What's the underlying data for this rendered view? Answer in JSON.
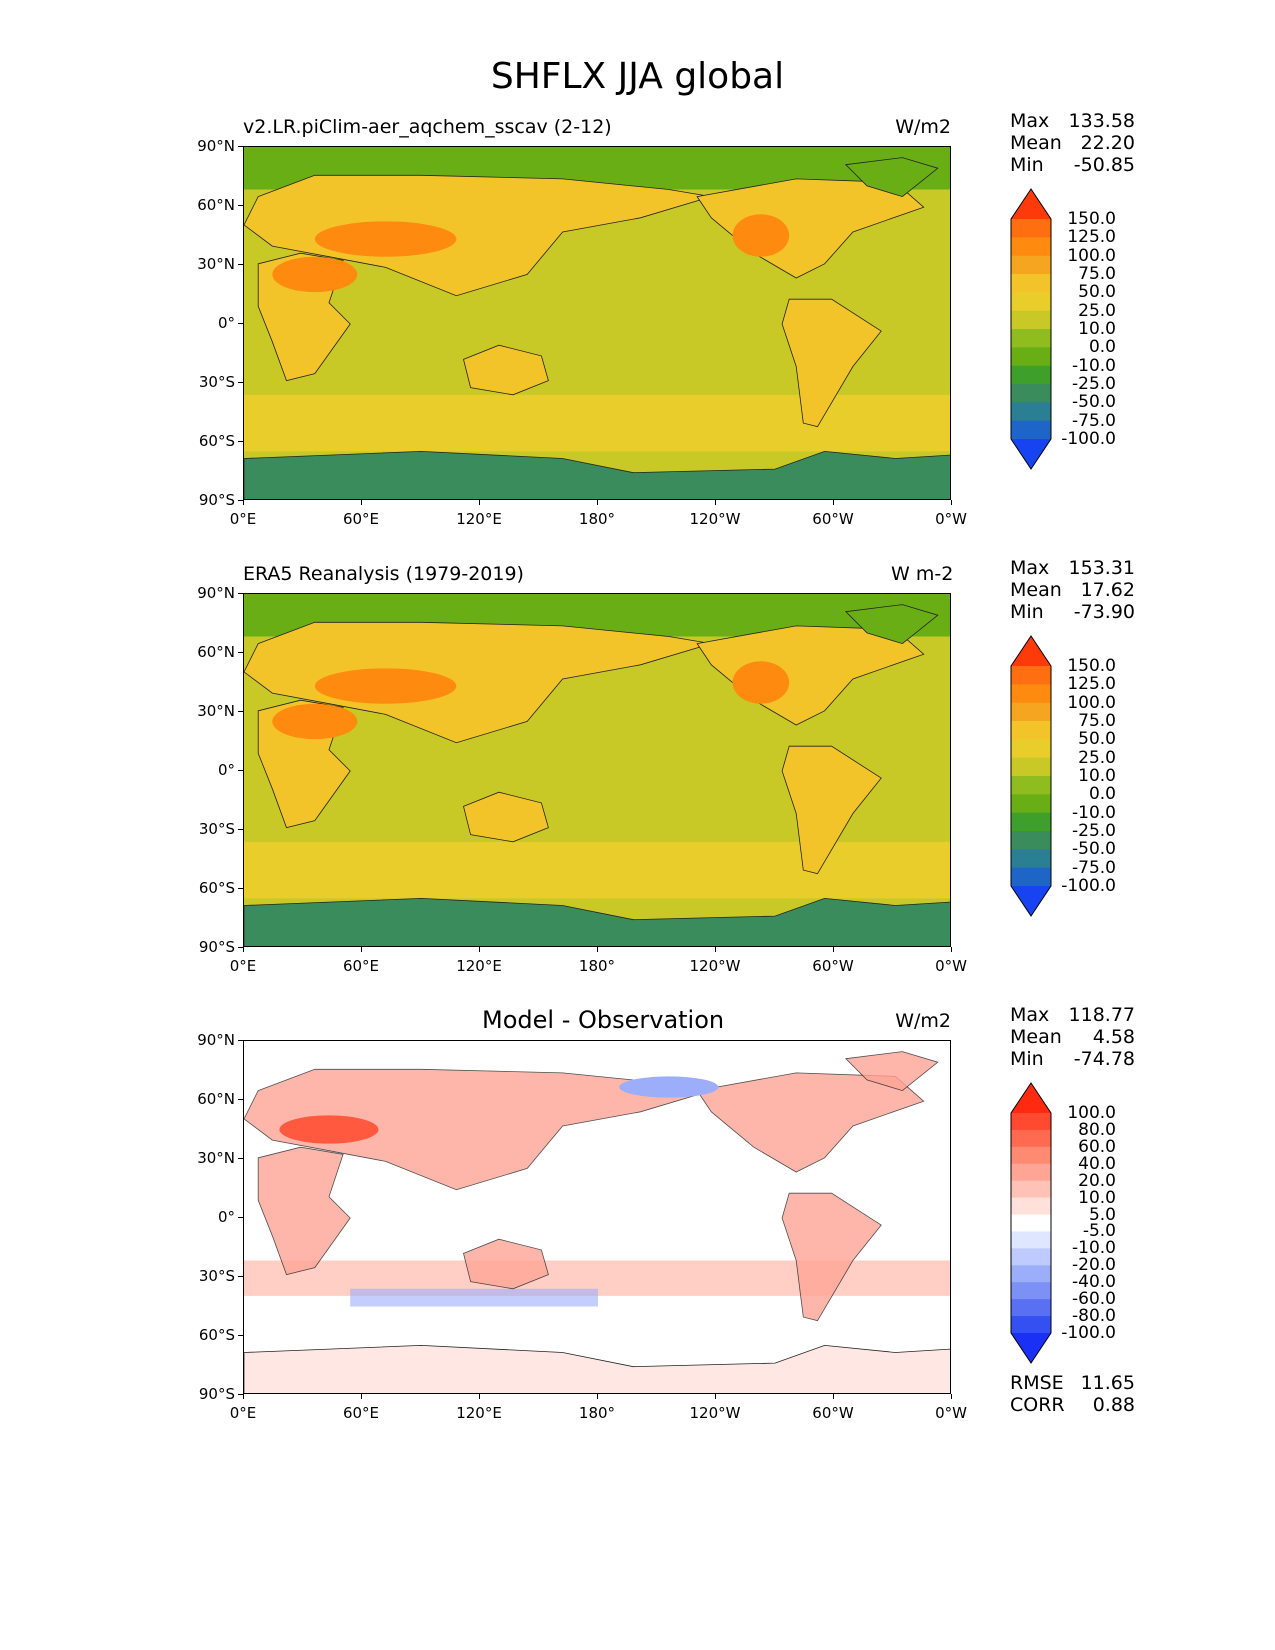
{
  "title": "SHFLX JJA global",
  "lat_labels": [
    "90°N",
    "60°N",
    "30°N",
    "0°",
    "30°S",
    "60°S",
    "90°S"
  ],
  "lon_labels": [
    "0°E",
    "60°E",
    "120°E",
    "180°",
    "120°W",
    "60°W",
    "0°W"
  ],
  "panels": [
    {
      "left_title": "v2.LR.piClim-aer_aqchem_sscav (2-12)",
      "center_title": "",
      "units": "W/m2",
      "stats": {
        "max_label": "Max",
        "max": "133.58",
        "mean_label": "Mean",
        "mean": "22.20",
        "min_label": "Min",
        "min": "-50.85"
      },
      "colorbar": {
        "labels": [
          "150.0",
          "125.0",
          "100.0",
          "75.0",
          "50.0",
          "25.0",
          "10.0",
          "0.0",
          "-10.0",
          "-25.0",
          "-50.0",
          "-75.0",
          "-100.0"
        ],
        "colors": [
          "#ff3a0a",
          "#ff6e10",
          "#ff8a10",
          "#f5a520",
          "#f2c42a",
          "#e9cd2b",
          "#c8c826",
          "#8fbc1e",
          "#6aae15",
          "#3ea02a",
          "#3a8c5c",
          "#2a7f92",
          "#1d66c8",
          "#1744f0"
        ]
      }
    },
    {
      "left_title": "ERA5 Reanalysis (1979-2019)",
      "center_title": "",
      "units": "W m-2",
      "stats": {
        "max_label": "Max",
        "max": "153.31",
        "mean_label": "Mean",
        "mean": "17.62",
        "min_label": "Min",
        "min": "-73.90"
      },
      "colorbar": {
        "labels": [
          "150.0",
          "125.0",
          "100.0",
          "75.0",
          "50.0",
          "25.0",
          "10.0",
          "0.0",
          "-10.0",
          "-25.0",
          "-50.0",
          "-75.0",
          "-100.0"
        ],
        "colors": [
          "#ff3a0a",
          "#ff6e10",
          "#ff8a10",
          "#f5a520",
          "#f2c42a",
          "#e9cd2b",
          "#c8c826",
          "#8fbc1e",
          "#6aae15",
          "#3ea02a",
          "#3a8c5c",
          "#2a7f92",
          "#1d66c8",
          "#1744f0"
        ]
      }
    },
    {
      "left_title": "",
      "center_title": "Model - Observation",
      "units": "W/m2",
      "stats": {
        "max_label": "Max",
        "max": "118.77",
        "mean_label": "Mean",
        "mean": "4.58",
        "min_label": "Min",
        "min": "-74.78"
      },
      "extra": {
        "rmse_label": "RMSE",
        "rmse": "11.65",
        "corr_label": "CORR",
        "corr": "0.88"
      },
      "colorbar": {
        "labels": [
          "100.0",
          "80.0",
          "60.0",
          "40.0",
          "20.0",
          "10.0",
          "5.0",
          "-5.0",
          "-10.0",
          "-20.0",
          "-40.0",
          "-60.0",
          "-80.0",
          "-100.0"
        ],
        "colors": [
          "#ff2a10",
          "#ff4a30",
          "#ff6a50",
          "#ff8a72",
          "#ffa596",
          "#ffc2b6",
          "#ffe0da",
          "#ffffff",
          "#dfe6ff",
          "#bfcaff",
          "#9cadfa",
          "#7c90f5",
          "#5a70f2",
          "#3450f2",
          "#1a30f5"
        ]
      }
    }
  ],
  "colors": {
    "land_dry": "#f2c42a",
    "land_hot": "#ff8a10",
    "ocean": "#c8c826",
    "arctic": "#6aae15",
    "antarctic": "#3a8c5c",
    "southern_ocean": "#e9cd2b",
    "diff_pos": "#ffa596",
    "diff_neg": "#9cadfa"
  }
}
